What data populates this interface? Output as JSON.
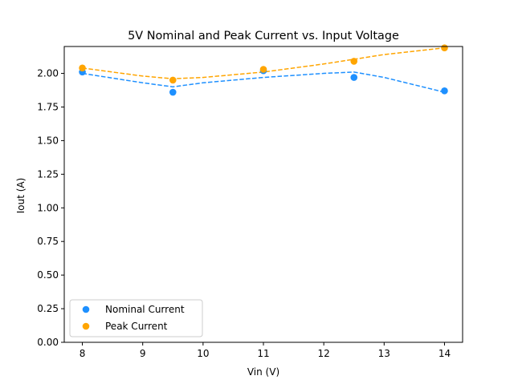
{
  "chart_data": {
    "type": "scatter",
    "title": "5V Nominal and Peak Current vs. Input Voltage",
    "xlabel": "Vin (V)",
    "ylabel": "Iout (A)",
    "xlim": [
      7.7,
      14.3
    ],
    "ylim": [
      0.0,
      2.2
    ],
    "xticks": [
      8,
      9,
      10,
      11,
      12,
      13,
      14
    ],
    "xtick_labels": [
      "8",
      "9",
      "10",
      "11",
      "12",
      "13",
      "14"
    ],
    "yticks": [
      0.0,
      0.25,
      0.5,
      0.75,
      1.0,
      1.25,
      1.5,
      1.75,
      2.0
    ],
    "ytick_labels": [
      "0.00",
      "0.25",
      "0.50",
      "0.75",
      "1.00",
      "1.25",
      "1.50",
      "1.75",
      "2.00"
    ],
    "grid": false,
    "legend_position": "lower-left",
    "x": [
      8,
      9.5,
      11,
      12.5,
      14
    ],
    "series": [
      {
        "name": "Nominal Current",
        "color": "#1e90ff",
        "values": [
          2.01,
          1.86,
          2.02,
          1.97,
          1.87
        ],
        "trend": {
          "style": "dashed",
          "x": [
            8.0,
            9.0,
            9.5,
            10.0,
            11.0,
            12.0,
            12.5,
            13.0,
            14.0
          ],
          "y": [
            2.0,
            1.93,
            1.9,
            1.93,
            1.97,
            2.0,
            2.01,
            1.97,
            1.86
          ]
        }
      },
      {
        "name": "Peak Current",
        "color": "#ffa500",
        "values": [
          2.04,
          1.95,
          2.03,
          2.09,
          2.19
        ],
        "trend": {
          "style": "dashed",
          "x": [
            8.0,
            9.0,
            9.5,
            10.0,
            11.0,
            12.0,
            13.0,
            14.0
          ],
          "y": [
            2.04,
            1.98,
            1.96,
            1.97,
            2.01,
            2.07,
            2.14,
            2.19
          ]
        }
      }
    ]
  }
}
